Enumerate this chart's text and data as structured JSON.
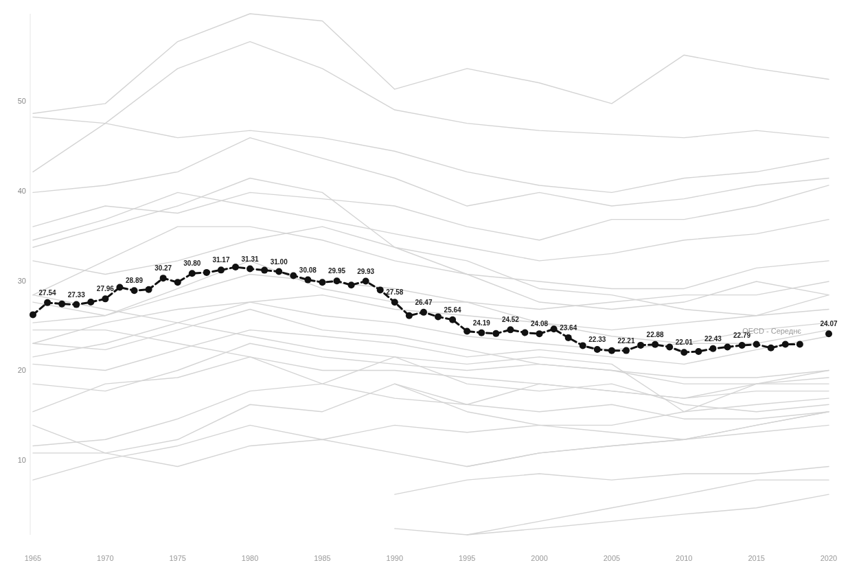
{
  "chart_data": {
    "type": "line",
    "x": [
      1965,
      1966,
      1967,
      1968,
      1969,
      1970,
      1971,
      1972,
      1973,
      1974,
      1975,
      1976,
      1977,
      1978,
      1979,
      1980,
      1981,
      1982,
      1983,
      1984,
      1985,
      1986,
      1987,
      1988,
      1989,
      1990,
      1991,
      1992,
      1993,
      1994,
      1995,
      1996,
      1997,
      1998,
      1999,
      2000,
      2001,
      2002,
      2003,
      2004,
      2005,
      2006,
      2007,
      2008,
      2009,
      2010,
      2011,
      2012,
      2013,
      2014,
      2015,
      2016,
      2017,
      2018,
      2019,
      2020
    ],
    "xlim": [
      1965,
      2020
    ],
    "xticks": [
      1965,
      1970,
      1975,
      1980,
      1985,
      1990,
      1995,
      2000,
      2005,
      2010,
      2015,
      2020
    ],
    "ylim": [
      1.7,
      59.7
    ],
    "yticks": [
      10,
      20,
      30,
      40,
      50
    ],
    "grid": false,
    "series": [
      {
        "color": "#d4d4d4",
        "x": [
          1965,
          1970,
          1975,
          1980,
          1985,
          1990,
          1995,
          2000,
          2005,
          2010,
          2015,
          2020
        ],
        "values": [
          48.6,
          49.7,
          56.6,
          59.7,
          58.9,
          51.3,
          53.6,
          52.0,
          49.7,
          55.1,
          53.6,
          52.4
        ]
      },
      {
        "color": "#d4d4d4",
        "x": [
          1965,
          1970,
          1975,
          1980,
          1985,
          1990,
          1995,
          2000,
          2005,
          2010,
          2015,
          2020
        ],
        "values": [
          48.2,
          47.5,
          53.6,
          56.6,
          53.6,
          49.0,
          47.5,
          46.7,
          46.3,
          45.9,
          46.7,
          45.9
        ]
      },
      {
        "color": "#d4d4d4",
        "x": [
          1965,
          1970,
          1975,
          1980,
          1985,
          1990,
          1995,
          2000,
          2005,
          2010,
          2015,
          2020
        ],
        "values": [
          42.1,
          47.5,
          45.9,
          46.7,
          45.9,
          44.4,
          42.1,
          40.6,
          39.8,
          41.4,
          42.1,
          43.6
        ]
      },
      {
        "color": "#d4d4d4",
        "x": [
          1965,
          1970,
          1975,
          1980,
          1985,
          1990,
          1995,
          2000,
          2005,
          2010,
          2015,
          2020
        ],
        "values": [
          39.8,
          40.6,
          42.1,
          45.9,
          43.6,
          41.4,
          38.3,
          39.8,
          38.3,
          39.1,
          40.6,
          41.4
        ]
      },
      {
        "color": "#d4d4d4",
        "x": [
          1965,
          1970,
          1975,
          1980,
          1985,
          1990,
          1995,
          2000,
          2005,
          2010,
          2015,
          2020
        ],
        "values": [
          36.0,
          38.3,
          37.5,
          39.8,
          39.1,
          38.3,
          36.0,
          34.5,
          36.8,
          36.8,
          38.3,
          40.6
        ]
      },
      {
        "color": "#d4d4d4",
        "x": [
          1965,
          1970,
          1975,
          1980,
          1985,
          1990,
          1995,
          2000,
          2005,
          2010,
          2015,
          2020
        ],
        "values": [
          34.5,
          36.8,
          39.8,
          38.3,
          36.8,
          35.2,
          33.7,
          32.2,
          33.0,
          34.5,
          35.2,
          36.8
        ]
      },
      {
        "color": "#d4d4d4",
        "x": [
          1965,
          1970,
          1975,
          1980,
          1985,
          1990,
          1995,
          2000,
          2005,
          2010,
          2015,
          2020
        ],
        "values": [
          28.4,
          32.2,
          36.0,
          36.0,
          34.5,
          32.2,
          30.7,
          29.9,
          29.1,
          29.1,
          31.4,
          32.2
        ]
      },
      {
        "color": "#d4d4d4",
        "x": [
          1965,
          1970,
          1975,
          1980,
          1985,
          1990,
          1995,
          2000,
          2005,
          2010,
          2015,
          2020
        ],
        "values": [
          33.7,
          36.0,
          38.3,
          41.4,
          39.8,
          33.7,
          32.2,
          29.1,
          28.4,
          26.8,
          26.1,
          28.4
        ]
      },
      {
        "color": "#d4d4d4",
        "x": [
          1965,
          1970,
          1975,
          1980,
          1985,
          1990,
          1995,
          2000,
          2005,
          2010,
          2015,
          2020
        ],
        "values": [
          25.3,
          26.1,
          29.1,
          32.2,
          29.1,
          27.6,
          27.6,
          26.8,
          27.6,
          28.4,
          28.4,
          29.9
        ]
      },
      {
        "color": "#d4d4d4",
        "x": [
          1965,
          1970,
          1975,
          1980,
          1985,
          1990,
          1995,
          2000,
          2005,
          2010,
          2015,
          2020
        ],
        "values": [
          23.0,
          25.3,
          26.8,
          27.6,
          28.4,
          26.8,
          26.1,
          25.3,
          24.5,
          25.3,
          26.1,
          26.8
        ]
      },
      {
        "color": "#d4d4d4",
        "x": [
          1965,
          1970,
          1975,
          1980,
          1985,
          1990,
          1995,
          2000,
          2005,
          2010,
          2015,
          2020
        ],
        "values": [
          21.5,
          23.0,
          25.3,
          27.6,
          26.1,
          25.3,
          23.8,
          23.0,
          22.3,
          23.0,
          24.5,
          25.3
        ]
      },
      {
        "color": "#d4d4d4",
        "x": [
          1965,
          1970,
          1975,
          1980,
          1985,
          1990,
          1995,
          2000,
          2005,
          2010,
          2015,
          2020
        ],
        "values": [
          20.7,
          20.0,
          22.3,
          24.5,
          23.8,
          23.0,
          21.5,
          22.3,
          21.5,
          20.7,
          22.3,
          23.8
        ]
      },
      {
        "color": "#d4d4d4",
        "x": [
          1965,
          1970,
          1975,
          1980,
          1985,
          1990,
          1995,
          2000,
          2005,
          2010,
          2015,
          2020
        ],
        "values": [
          18.5,
          17.7,
          20.0,
          23.0,
          21.5,
          20.7,
          20.0,
          20.7,
          20.0,
          19.2,
          19.2,
          20.0
        ]
      },
      {
        "color": "#d4d4d4",
        "x": [
          1965,
          1970,
          1975,
          1980,
          1985,
          1990,
          1995,
          2000,
          2005,
          2010,
          2015,
          2020
        ],
        "values": [
          15.4,
          18.5,
          19.2,
          21.5,
          18.5,
          16.9,
          16.2,
          18.5,
          17.7,
          16.9,
          17.7,
          17.7
        ]
      },
      {
        "color": "#d4d4d4",
        "x": [
          1965,
          1970,
          1975,
          1980,
          1985,
          1990,
          1995,
          2000,
          2005,
          2010,
          2015,
          2020
        ],
        "values": [
          11.6,
          12.3,
          14.6,
          17.7,
          18.5,
          21.5,
          18.5,
          17.7,
          18.5,
          16.2,
          15.4,
          16.2
        ]
      },
      {
        "color": "#d4d4d4",
        "x": [
          1965,
          1970,
          1975,
          1980,
          1985,
          1990,
          1995,
          2000,
          2005,
          2010,
          2015,
          2020
        ],
        "values": [
          10.8,
          10.8,
          12.3,
          16.2,
          15.4,
          18.5,
          16.2,
          15.4,
          16.2,
          14.6,
          14.6,
          15.4
        ]
      },
      {
        "color": "#d4d4d4",
        "x": [
          1965,
          1970,
          1975,
          1980,
          1985,
          1990,
          1995,
          2000,
          2005,
          2010,
          2015,
          2020
        ],
        "values": [
          7.8,
          10.1,
          11.6,
          13.9,
          12.3,
          13.9,
          13.1,
          13.9,
          13.1,
          12.3,
          13.9,
          15.4
        ]
      },
      {
        "color": "#d4d4d4",
        "x": [
          1965,
          1970,
          1975,
          1980,
          1985,
          1990,
          1995,
          2000,
          2005,
          2010,
          2015,
          2020
        ],
        "values": [
          13.9,
          10.8,
          9.3,
          11.6,
          12.3,
          10.8,
          9.3,
          10.8,
          11.6,
          12.3,
          13.1,
          13.9
        ]
      },
      {
        "color": "#d4d4d4",
        "x": [
          1990,
          1995,
          2000,
          2005,
          2010,
          2015,
          2020
        ],
        "values": [
          2.4,
          1.7,
          2.4,
          3.2,
          4.0,
          4.7,
          6.2
        ]
      },
      {
        "color": "#d4d4d4",
        "x": [
          1990,
          1995,
          2000,
          2005,
          2010,
          2015,
          2020
        ],
        "values": [
          6.2,
          7.8,
          8.5,
          7.8,
          8.5,
          8.5,
          9.3
        ]
      },
      {
        "color": "#d4d4d4",
        "x": [
          1990,
          1995,
          2000,
          2005,
          2010,
          2015,
          2020
        ],
        "values": [
          18.5,
          15.4,
          13.9,
          13.9,
          15.4,
          16.2,
          16.9
        ]
      },
      {
        "color": "#d4d4d4",
        "x": [
          1995,
          2000,
          2005,
          2010,
          2015,
          2020
        ],
        "values": [
          9.3,
          10.8,
          11.6,
          12.3,
          13.9,
          15.4
        ]
      },
      {
        "color": "#d4d4d4",
        "x": [
          1995,
          2000,
          2005,
          2010,
          2015,
          2020
        ],
        "values": [
          1.7,
          3.2,
          4.7,
          6.2,
          7.8,
          7.8
        ]
      },
      {
        "color": "#d4d4d4",
        "x": [
          1965,
          1970,
          1975,
          1980,
          1985,
          1990,
          1995,
          2000,
          2005,
          2010,
          2015,
          2020
        ],
        "values": [
          28.4,
          26.8,
          25.3,
          23.8,
          22.3,
          21.5,
          20.7,
          21.5,
          20.7,
          15.4,
          18.5,
          19.2
        ]
      },
      {
        "color": "#d4d4d4",
        "x": [
          1965,
          1970,
          1975,
          1980,
          1985,
          1990,
          1995,
          2000,
          2005,
          2010,
          2015,
          2020
        ],
        "values": [
          24.5,
          24.5,
          23.0,
          21.5,
          20.0,
          20.0,
          19.2,
          18.5,
          17.7,
          16.9,
          18.5,
          20.0
        ]
      },
      {
        "color": "#d4d4d4",
        "x": [
          1965,
          1970,
          1975,
          1980,
          1985,
          1990,
          1995,
          2000,
          2005,
          2010,
          2015,
          2020
        ],
        "values": [
          23.0,
          22.3,
          24.5,
          26.8,
          24.5,
          23.8,
          22.3,
          20.7,
          20.0,
          18.5,
          18.5,
          18.5
        ]
      },
      {
        "color": "#d4d4d4",
        "x": [
          1965,
          1970,
          1975,
          1980,
          1985,
          1990,
          1995,
          2000,
          2005,
          2010,
          2015,
          2020
        ],
        "values": [
          27.6,
          26.1,
          28.4,
          30.7,
          29.9,
          29.1,
          27.6,
          25.3,
          23.8,
          23.0,
          23.0,
          24.5
        ]
      },
      {
        "color": "#d4d4d4",
        "x": [
          1965,
          1970,
          1975,
          1980,
          1985,
          1990,
          1995,
          2000,
          2005,
          2010,
          2015,
          2020
        ],
        "values": [
          32.2,
          30.7,
          32.2,
          34.5,
          36.0,
          33.7,
          30.7,
          27.6,
          26.8,
          27.6,
          29.9,
          28.4
        ]
      },
      {
        "name": "OECD - Середнє",
        "color": "#111111",
        "line_style": "dashed",
        "marker": "circle",
        "values": [
          26.2,
          27.54,
          27.4,
          27.33,
          27.6,
          27.96,
          29.25,
          28.89,
          29.0,
          30.27,
          29.8,
          30.8,
          30.9,
          31.17,
          31.5,
          31.31,
          31.15,
          31.0,
          30.55,
          30.08,
          29.8,
          29.95,
          29.5,
          29.93,
          28.95,
          27.58,
          26.1,
          26.47,
          25.97,
          25.64,
          24.36,
          24.19,
          24.1,
          24.52,
          24.2,
          24.08,
          24.6,
          23.64,
          22.76,
          22.33,
          22.2,
          22.21,
          22.8,
          22.88,
          22.6,
          22.01,
          22.1,
          22.43,
          22.6,
          22.79,
          22.9,
          22.5,
          22.9,
          22.9,
          null,
          24.07
        ],
        "value_labels": [
          null,
          "27.54",
          null,
          "27.33",
          null,
          "27.96",
          null,
          "28.89",
          null,
          "30.27",
          null,
          "30.80",
          null,
          "31.17",
          null,
          "31.31",
          null,
          "31.00",
          null,
          "30.08",
          null,
          "29.95",
          null,
          "29.93",
          null,
          "27.58",
          null,
          "26.47",
          null,
          "25.64",
          null,
          "24.19",
          null,
          "24.52",
          null,
          "24.08",
          null,
          "23.64",
          null,
          "22.33",
          null,
          "22.21",
          null,
          "22.88",
          null,
          "22.01",
          null,
          "22.43",
          null,
          "22.79",
          null,
          null,
          null,
          null,
          null,
          "24.07"
        ]
      }
    ]
  }
}
